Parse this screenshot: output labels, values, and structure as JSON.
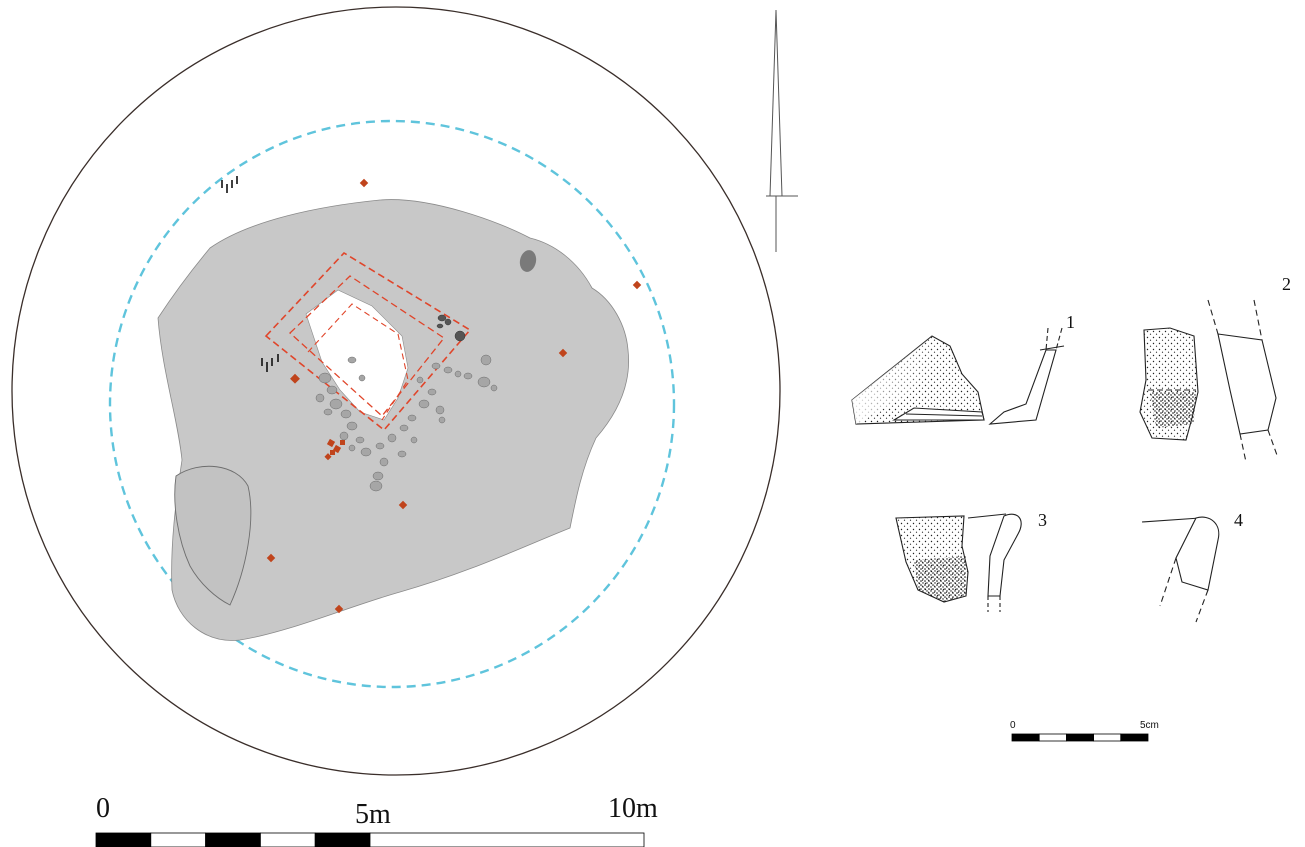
{
  "plan": {
    "scale_bar": {
      "label_start": "0",
      "label_mid": "5m",
      "label_end": "10m",
      "divisions": 10,
      "max_value": 10,
      "unit": "m"
    },
    "colors": {
      "outline": "#3a2e2a",
      "mound_fill": "#c8c8c8",
      "mound_stroke": "#8a8a8a",
      "ditch": "#5fc4dc",
      "trench": "#e0452a",
      "finds": "#c0441c",
      "stones": "#9a9a9a"
    }
  },
  "finds_scale_bar": {
    "label_start": "0",
    "label_end": "5cm",
    "divisions": 5,
    "max_value": 5,
    "unit": "cm"
  },
  "sherds": [
    {
      "label": "1"
    },
    {
      "label": "2"
    },
    {
      "label": "3"
    },
    {
      "label": "4"
    }
  ]
}
